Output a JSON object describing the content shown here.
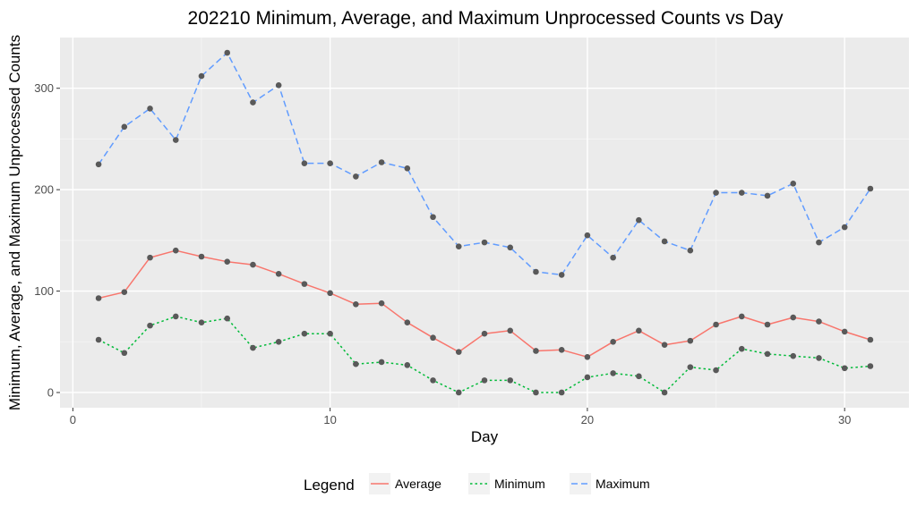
{
  "chart_data": {
    "type": "line",
    "title": "202210 Minimum, Average, and Maximum Unprocessed Counts vs Day",
    "xlabel": "Day",
    "ylabel": "Minimum, Average, and Maximum Unprocessed Counts",
    "xlim": [
      -0.5,
      32.5
    ],
    "ylim": [
      -15,
      350
    ],
    "xticks": [
      0,
      10,
      20,
      30
    ],
    "yticks": [
      0,
      100,
      200,
      300
    ],
    "grid": true,
    "legend": {
      "title": "Legend",
      "placement": "bottom",
      "entries": [
        "Average",
        "Minimum",
        "Maximum"
      ]
    },
    "x": [
      1,
      2,
      3,
      4,
      5,
      6,
      7,
      8,
      9,
      10,
      11,
      12,
      13,
      14,
      15,
      16,
      17,
      18,
      19,
      20,
      21,
      22,
      23,
      24,
      25,
      26,
      27,
      28,
      29,
      30,
      31
    ],
    "series": [
      {
        "name": "Average",
        "color": "#f8766d",
        "dash": "solid",
        "values": [
          93,
          99,
          133,
          140,
          134,
          129,
          126,
          117,
          107,
          98,
          87,
          88,
          69,
          54,
          40,
          58,
          61,
          41,
          42,
          35,
          50,
          61,
          47,
          51,
          67,
          75,
          67,
          74,
          70,
          60,
          52
        ]
      },
      {
        "name": "Minimum",
        "color": "#00ba38",
        "dash": "dotted",
        "values": [
          52,
          39,
          66,
          75,
          69,
          73,
          44,
          50,
          58,
          58,
          28,
          30,
          27,
          12,
          0,
          12,
          12,
          0,
          0,
          15,
          19,
          16,
          0,
          25,
          22,
          43,
          38,
          36,
          34,
          24,
          26
        ]
      },
      {
        "name": "Maximum",
        "color": "#619cff",
        "dash": "dashed",
        "values": [
          225,
          262,
          280,
          249,
          312,
          335,
          286,
          303,
          226,
          226,
          213,
          227,
          221,
          173,
          144,
          148,
          143,
          119,
          116,
          155,
          133,
          170,
          149,
          140,
          197,
          197,
          194,
          206,
          148,
          163,
          201
        ]
      }
    ],
    "point_color": "#595959"
  }
}
